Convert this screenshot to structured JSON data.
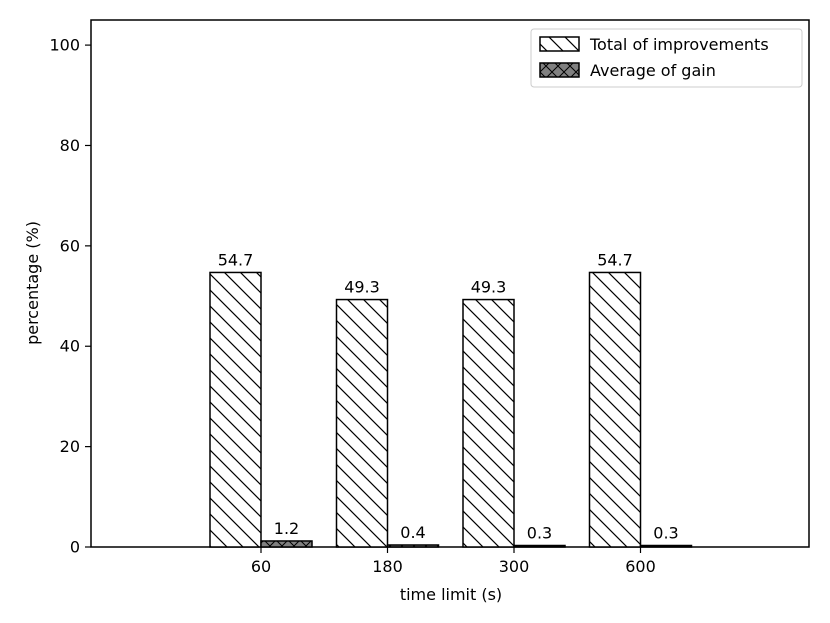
{
  "chart_data": {
    "type": "bar",
    "title": "",
    "xlabel": "time limit (s)",
    "ylabel": "percentage (%)",
    "categories": [
      "60",
      "180",
      "300",
      "600"
    ],
    "ylim": [
      0,
      105
    ],
    "yticks": [
      0,
      20,
      40,
      60,
      80,
      100
    ],
    "grid": false,
    "legend_position": "top-right",
    "series": [
      {
        "name": "Total of improvements",
        "values": [
          54.7,
          49.3,
          49.3,
          54.7
        ],
        "value_labels": [
          "54.7",
          "49.3",
          "49.3",
          "54.7"
        ],
        "fill": "#ffffff",
        "hatch": "backslash"
      },
      {
        "name": "Average of gain",
        "values": [
          1.2,
          0.4,
          0.3,
          0.3
        ],
        "value_labels": [
          "1.2",
          "0.4",
          "0.3",
          "0.3"
        ],
        "fill": "#808080",
        "hatch": "crosshatch"
      }
    ]
  }
}
